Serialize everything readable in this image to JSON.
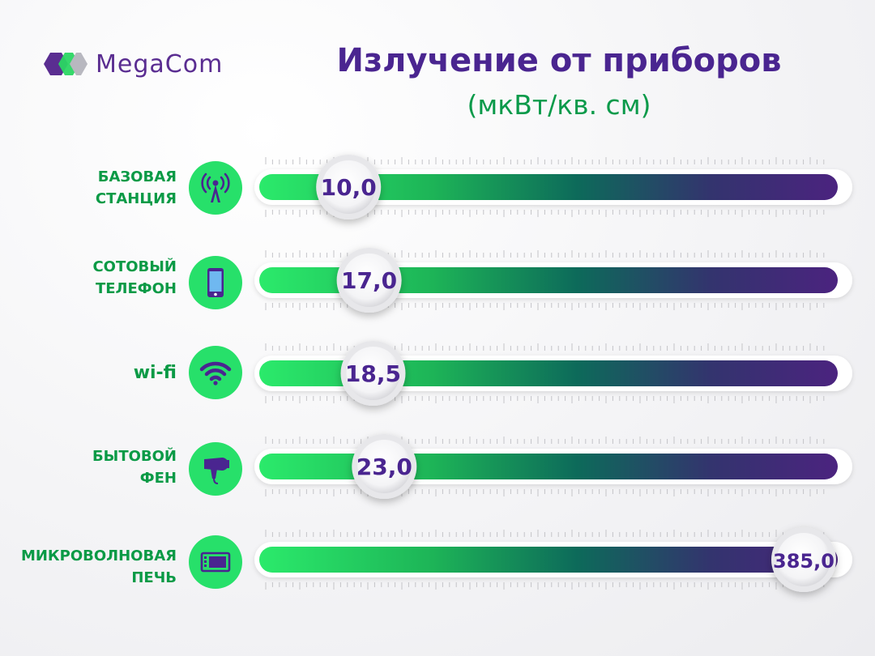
{
  "brand": {
    "name": "MegaCom"
  },
  "title": "Излучение от приборов",
  "subtitle": "(мкВт/кв. см)",
  "colors": {
    "purple": "#4a2590",
    "green_text": "#0a9a46",
    "bar_green": "#2bea6b",
    "bar_purple": "#4b237f",
    "icon_bg": "#27e06a"
  },
  "chart_data": {
    "type": "bar",
    "orientation": "horizontal",
    "title": "Излучение от приборов",
    "subtitle": "(мкВт/кв. см)",
    "categories": [
      "БАЗОВАЯ СТАНЦИЯ",
      "СОТОВЫЙ ТЕЛЕФОН",
      "wi-fi",
      "БЫТОВОЙ ФЕН",
      "МИКРОВОЛНОВАЯ ПЕЧЬ"
    ],
    "values": [
      10.0,
      17.0,
      18.5,
      23.0,
      385.0
    ],
    "value_labels": [
      "10,0",
      "17,0",
      "18,5",
      "23,0",
      "385,0"
    ],
    "icons": [
      "antenna-icon",
      "phone-icon",
      "wifi-icon",
      "hair-dryer-icon",
      "microwave-icon"
    ],
    "xlim": [
      0,
      385
    ]
  },
  "rows": [
    {
      "label_lines": [
        "БАЗОВАЯ",
        "СТАНЦИЯ"
      ]
    },
    {
      "label_lines": [
        "СОТОВЫЙ",
        "ТЕЛЕФОН"
      ]
    },
    {
      "label_lines": [
        "wi-fi"
      ]
    },
    {
      "label_lines": [
        "БЫТОВОЙ",
        "ФЕН"
      ]
    },
    {
      "label_lines": [
        "МИКРОВОЛНОВАЯ",
        "ПЕЧЬ"
      ]
    }
  ]
}
